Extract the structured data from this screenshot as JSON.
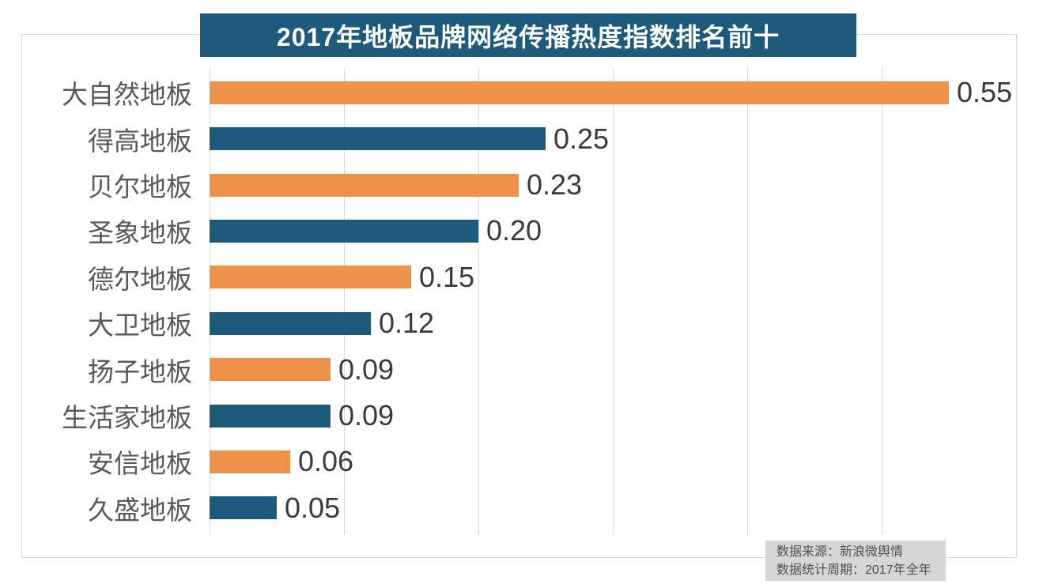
{
  "title": {
    "text": "2017年地板品牌网络传播热度指数排名前十"
  },
  "source_note": {
    "line1": "数据来源：新浪微舆情",
    "line2": "数据统计周期：2017年全年"
  },
  "colors": {
    "title_bg": "#1E5A7B",
    "bar_orange": "#EF9148",
    "bar_blue": "#1E5A7B",
    "grid": "#D9D9D9",
    "category_text": "#595959",
    "value_text": "#3B3B3B",
    "note_bg": "#D6D6D6",
    "note_text": "#4F4F4F"
  },
  "chart_data": {
    "type": "bar",
    "orientation": "horizontal",
    "title": "2017年地板品牌网络传播热度指数排名前十",
    "categories": [
      "大自然地板",
      "得高地板",
      "贝尔地板",
      "圣象地板",
      "德尔地板",
      "大卫地板",
      "扬子地板",
      "生活家地板",
      "安信地板",
      "久盛地板"
    ],
    "values": [
      0.55,
      0.25,
      0.23,
      0.2,
      0.15,
      0.12,
      0.09,
      0.09,
      0.06,
      0.05
    ],
    "value_labels": [
      "0.55",
      "0.25",
      "0.23",
      "0.20",
      "0.15",
      "0.12",
      "0.09",
      "0.09",
      "0.06",
      "0.05"
    ],
    "xlabel": "",
    "ylabel": "",
    "xlim": [
      0,
      0.6
    ],
    "grid_interval": 0.1,
    "grid": true,
    "legend_position": "none",
    "bar_color_pattern": [
      "#EF9148",
      "#1E5A7B"
    ]
  }
}
